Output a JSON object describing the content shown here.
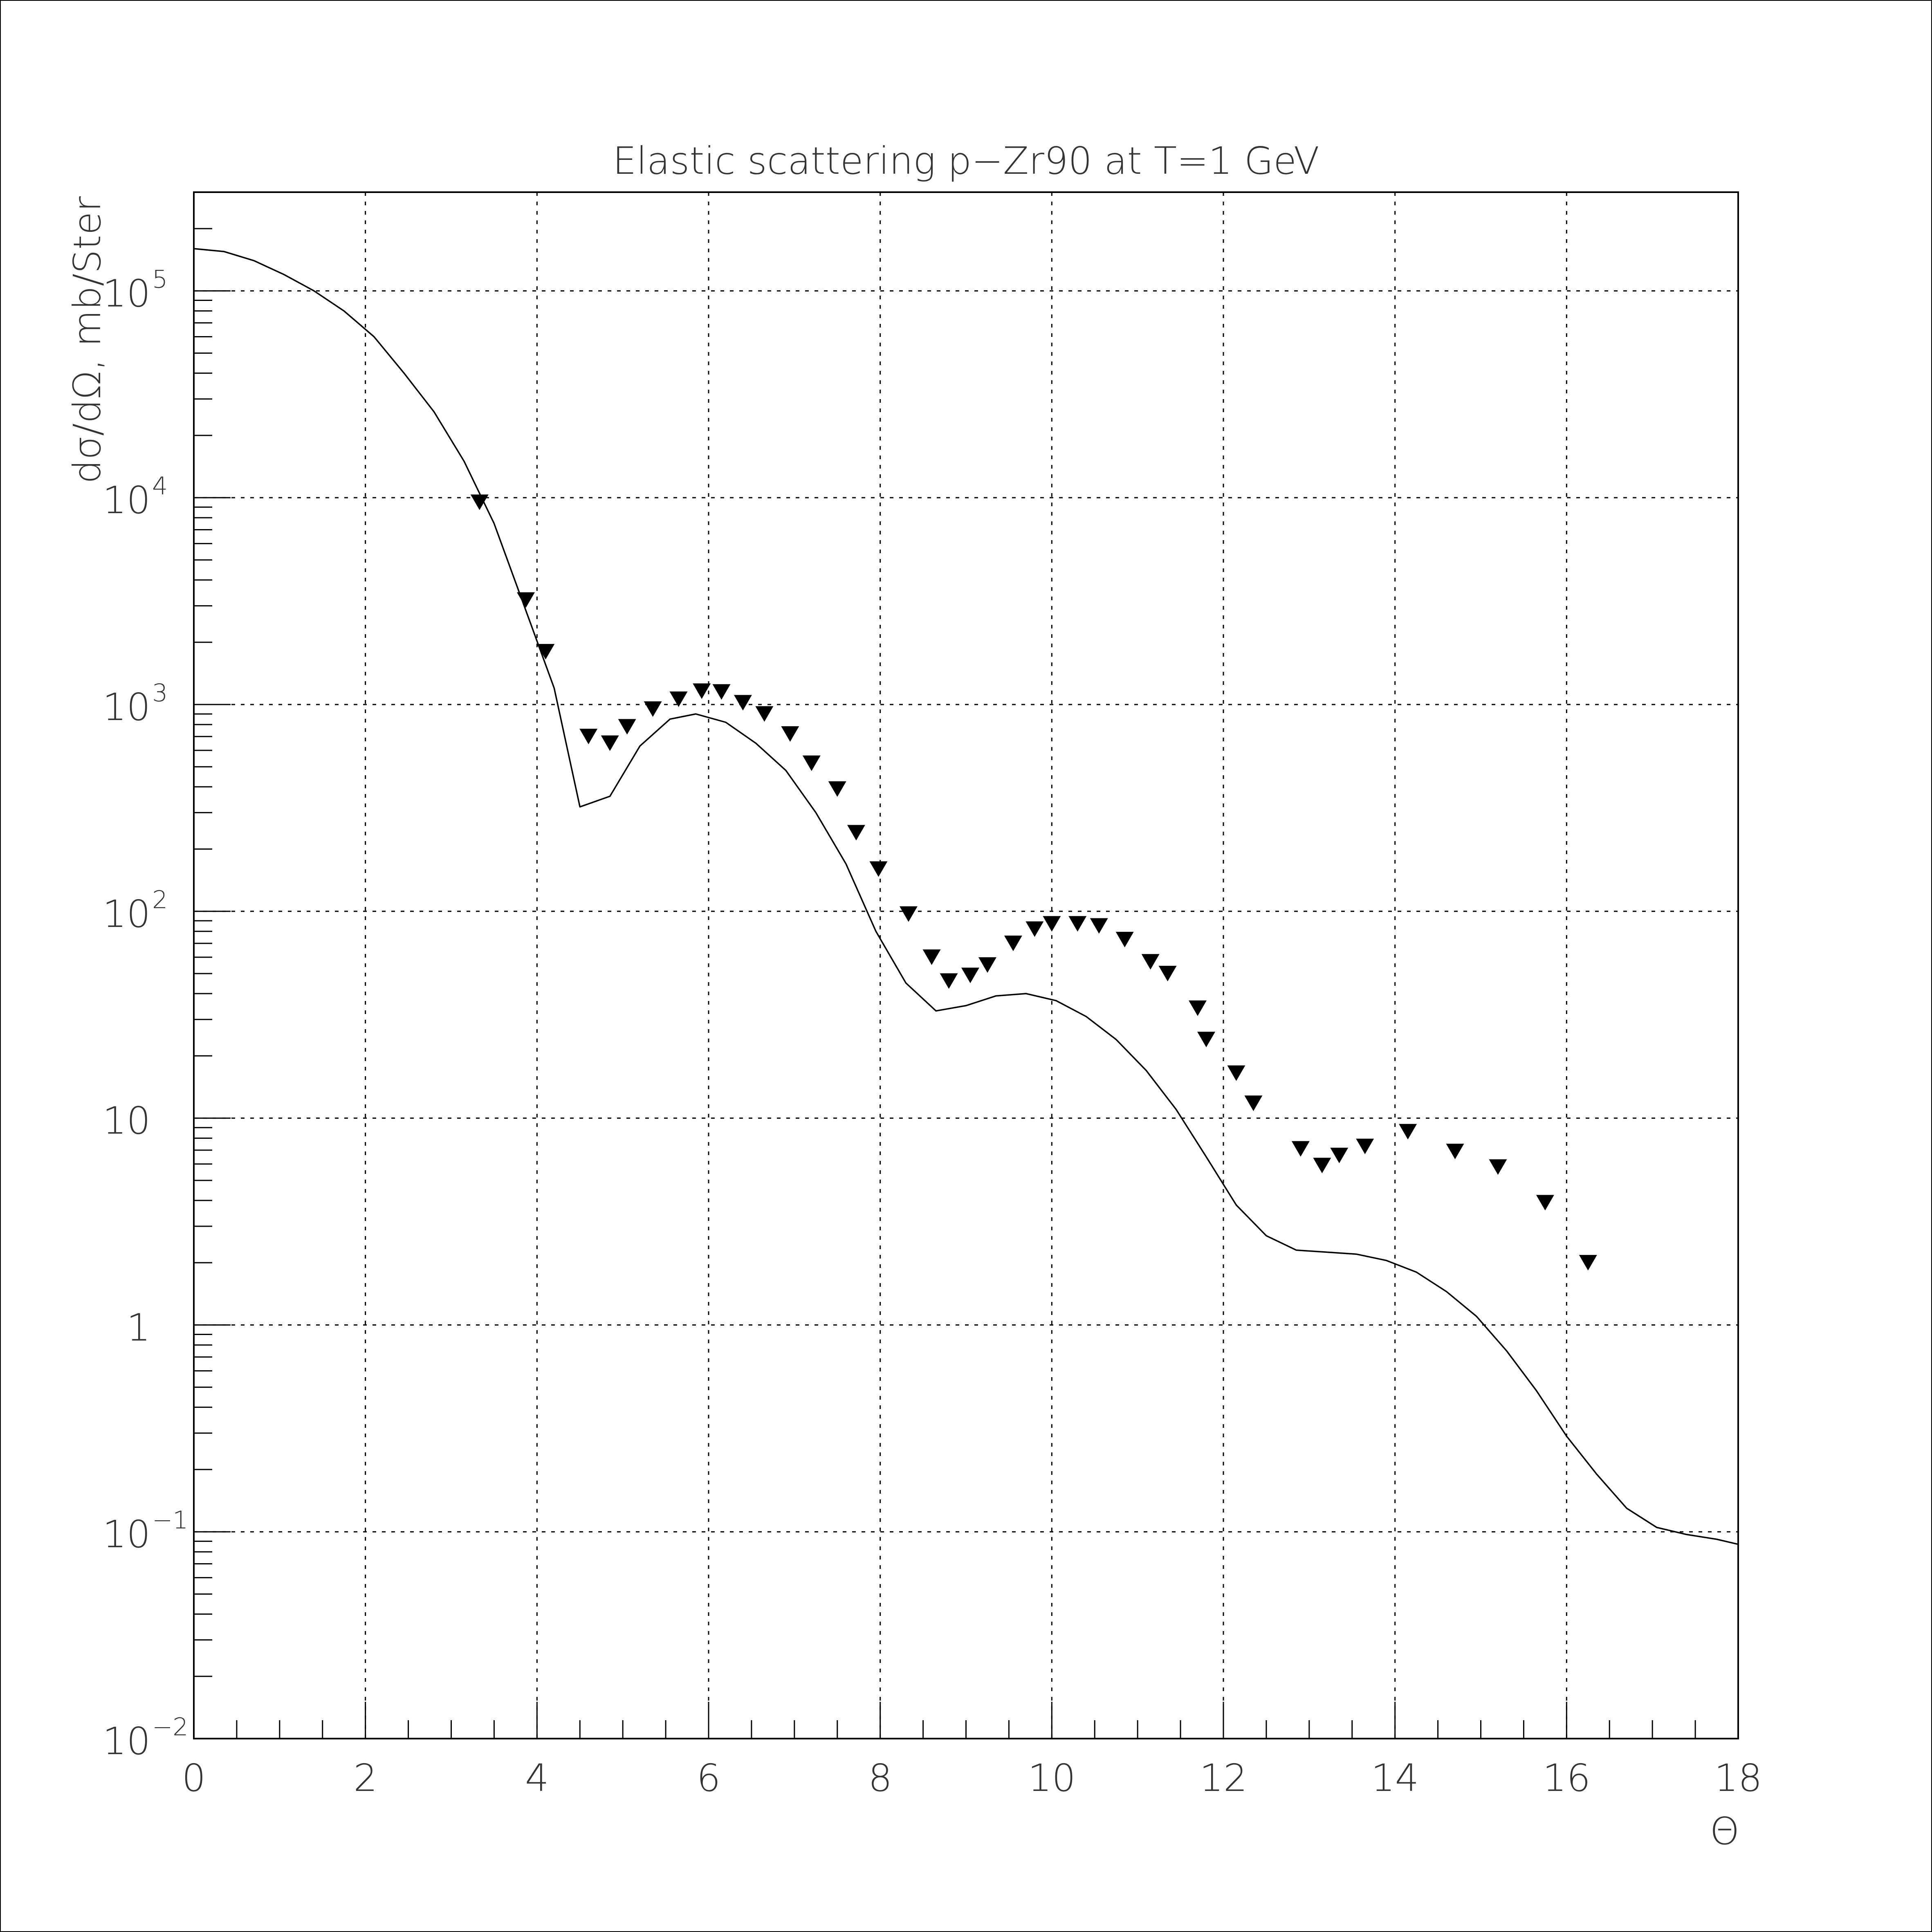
{
  "chart_data": {
    "type": "line",
    "title": "Elastic scattering p−Zr90 at T=1 GeV",
    "xlabel": "Θ",
    "ylabel": "dσ/dΩ, mb/Ster",
    "xlim": [
      0,
      18
    ],
    "ylim": [
      0.01,
      300000
    ],
    "yscale": "log",
    "grid": true,
    "x_ticks": [
      {
        "value": 0,
        "label": "0"
      },
      {
        "value": 2,
        "label": "2"
      },
      {
        "value": 4,
        "label": "4"
      },
      {
        "value": 6,
        "label": "6"
      },
      {
        "value": 8,
        "label": "8"
      },
      {
        "value": 10,
        "label": "10"
      },
      {
        "value": 12,
        "label": "12"
      },
      {
        "value": 14,
        "label": "14"
      },
      {
        "value": 16,
        "label": "16"
      },
      {
        "value": 18,
        "label": "18"
      }
    ],
    "y_ticks": [
      {
        "value": 0.01,
        "base": "10",
        "exp": "−2"
      },
      {
        "value": 0.1,
        "base": "10",
        "exp": "−1"
      },
      {
        "value": 1,
        "base": "1",
        "exp": ""
      },
      {
        "value": 10,
        "base": "10",
        "exp": ""
      },
      {
        "value": 100,
        "base": "10",
        "exp": "2"
      },
      {
        "value": 1000,
        "base": "10",
        "exp": "3"
      },
      {
        "value": 10000,
        "base": "10",
        "exp": "4"
      },
      {
        "value": 100000,
        "base": "10",
        "exp": "5"
      }
    ],
    "series": [
      {
        "style": "line",
        "x": [
          0,
          0.35,
          0.7,
          1.05,
          1.4,
          1.75,
          2.1,
          2.45,
          2.8,
          3.15,
          3.5,
          3.85,
          4.2,
          4.5,
          4.85,
          5.2,
          5.55,
          5.85,
          6.2,
          6.55,
          6.9,
          7.25,
          7.6,
          7.95,
          8.3,
          8.65,
          9.0,
          9.35,
          9.7,
          10.05,
          10.4,
          10.75,
          11.1,
          11.45,
          11.8,
          12.15,
          12.5,
          12.85,
          13.2,
          13.55,
          13.9,
          14.25,
          14.6,
          14.95,
          15.3,
          15.65,
          16.0,
          16.35,
          16.7,
          17.05,
          17.4,
          17.75,
          18.0
        ],
        "y": [
          160000,
          155000,
          140000,
          120000,
          100000,
          80000,
          60000,
          40000,
          26000,
          15000,
          7500,
          3000,
          1200,
          320,
          360,
          630,
          850,
          900,
          820,
          650,
          480,
          300,
          170,
          80,
          45,
          33,
          35,
          39,
          40,
          37,
          31,
          24,
          17,
          11,
          6.5,
          3.8,
          2.7,
          2.3,
          2.25,
          2.2,
          2.05,
          1.8,
          1.45,
          1.1,
          0.75,
          0.48,
          0.29,
          0.19,
          0.13,
          0.105,
          0.097,
          0.092,
          0.087
        ]
      },
      {
        "style": "markers",
        "marker": "triangle-down",
        "x": [
          3.33,
          3.87,
          4.1,
          4.6,
          4.85,
          5.05,
          5.35,
          5.65,
          5.92,
          6.15,
          6.4,
          6.65,
          6.95,
          7.2,
          7.5,
          7.72,
          7.98,
          8.33,
          8.6,
          8.8,
          9.05,
          9.25,
          9.55,
          9.8,
          10.0,
          10.3,
          10.55,
          10.85,
          11.15,
          11.35,
          11.7,
          11.8,
          12.15,
          12.35,
          12.9,
          13.15,
          13.35,
          13.65,
          14.15,
          14.7,
          15.2,
          15.75,
          16.25
        ],
        "y": [
          9500,
          3200,
          1800,
          700,
          650,
          780,
          950,
          1060,
          1160,
          1150,
          1020,
          900,
          720,
          520,
          390,
          240,
          160,
          97,
          60,
          46,
          49,
          55,
          70,
          82,
          87,
          87,
          85,
          73,
          57,
          50,
          34,
          24,
          16.5,
          11.8,
          7.1,
          5.9,
          6.6,
          7.3,
          8.6,
          6.9,
          5.8,
          3.9,
          2.0
        ]
      }
    ]
  }
}
